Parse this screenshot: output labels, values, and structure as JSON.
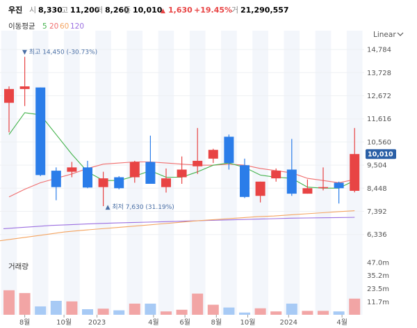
{
  "header": {
    "name": "우진",
    "open_label": "시",
    "open_value": "8,330",
    "high_label": "고",
    "high_value": "11,200",
    "low_label": "저",
    "low_value": "8,260",
    "close_label": "종",
    "close_value": "10,010",
    "change_arrow": "▲",
    "change_value": "1,630",
    "change_pct": "+19.45%",
    "volume_label": "거",
    "volume_value": "21,290,557"
  },
  "ma_legend": {
    "title": "이동평균",
    "items": [
      {
        "label": "5",
        "color": "#41b24a"
      },
      {
        "label": "20",
        "color": "#f06d6d"
      },
      {
        "label": "60",
        "color": "#f4a460"
      },
      {
        "label": "120",
        "color": "#9b6fe0"
      }
    ]
  },
  "scale_selector": {
    "label": "Linear",
    "icon": "chevron-down-icon"
  },
  "colors": {
    "up": "#e84444",
    "down": "#2b7de9",
    "up_vol": "#f2a5a5",
    "down_vol": "#a7caf5",
    "bg_band": "#f3f6fb"
  },
  "chart_data": {
    "type": "candlestick",
    "title": "우진",
    "y_axis": {
      "ticks": [
        "14,784",
        "13,728",
        "12,672",
        "11,616",
        "10,560",
        "9,504",
        "8,448",
        "7,392",
        "6,336"
      ],
      "tick_values": [
        14784,
        13728,
        12672,
        11616,
        10560,
        9504,
        8448,
        7392,
        6336
      ],
      "range": [
        5850,
        15200
      ]
    },
    "x_axis": {
      "ticks": [
        {
          "label": "8월",
          "index": 1
        },
        {
          "label": "10월",
          "index": 3.5
        },
        {
          "label": "2023",
          "index": 5.6
        },
        {
          "label": "4월",
          "index": 9.2
        },
        {
          "label": "6월",
          "index": 11.2
        },
        {
          "label": "8월",
          "index": 13.2
        },
        {
          "label": "10월",
          "index": 15.2
        },
        {
          "label": "2024",
          "index": 17.8
        },
        {
          "label": "4월",
          "index": 21.2
        }
      ]
    },
    "candles": [
      {
        "o": 12350,
        "h": 13100,
        "l": 11000,
        "c": 12980
      },
      {
        "o": 12980,
        "h": 14450,
        "l": 12200,
        "c": 13100
      },
      {
        "o": 13050,
        "h": 13050,
        "l": 9000,
        "c": 9050
      },
      {
        "o": 9250,
        "h": 9400,
        "l": 7900,
        "c": 8500
      },
      {
        "o": 9200,
        "h": 9650,
        "l": 8950,
        "c": 9400
      },
      {
        "o": 9400,
        "h": 9700,
        "l": 8450,
        "c": 8480
      },
      {
        "o": 8500,
        "h": 9200,
        "l": 7630,
        "c": 8900
      },
      {
        "o": 8950,
        "h": 9000,
        "l": 8400,
        "c": 8450
      },
      {
        "o": 8950,
        "h": 9700,
        "l": 8700,
        "c": 9650
      },
      {
        "o": 9650,
        "h": 10850,
        "l": 8700,
        "c": 8650
      },
      {
        "o": 8500,
        "h": 9350,
        "l": 8250,
        "c": 8900
      },
      {
        "o": 8950,
        "h": 9900,
        "l": 8650,
        "c": 9300
      },
      {
        "o": 9450,
        "h": 11200,
        "l": 9100,
        "c": 9700
      },
      {
        "o": 9800,
        "h": 10250,
        "l": 9600,
        "c": 10200
      },
      {
        "o": 10800,
        "h": 10900,
        "l": 9300,
        "c": 9600
      },
      {
        "o": 9500,
        "h": 9800,
        "l": 8000,
        "c": 8050
      },
      {
        "o": 8100,
        "h": 8750,
        "l": 7800,
        "c": 8750
      },
      {
        "o": 8900,
        "h": 9350,
        "l": 8750,
        "c": 9250
      },
      {
        "o": 9300,
        "h": 10700,
        "l": 8100,
        "c": 8200
      },
      {
        "o": 8200,
        "h": 8850,
        "l": 8200,
        "c": 8450
      },
      {
        "o": 8450,
        "h": 9400,
        "l": 8350,
        "c": 8500
      },
      {
        "o": 8700,
        "h": 8750,
        "l": 7750,
        "c": 8450
      },
      {
        "o": 8330,
        "h": 11200,
        "l": 8260,
        "c": 10010
      }
    ],
    "ma5": [
      10900,
      11900,
      11800,
      10900,
      10000,
      9200,
      8800,
      8800,
      9000,
      9250,
      8950,
      8950,
      9200,
      9500,
      9600,
      9400,
      9050,
      8950,
      8900,
      8500,
      8450,
      8450,
      8800
    ],
    "ma20": [
      8050,
      8400,
      8700,
      8900,
      9100,
      9350,
      9550,
      9600,
      9650,
      9650,
      9600,
      9550,
      9500,
      9500,
      9550,
      9500,
      9350,
      9250,
      9150,
      8900,
      8800,
      8700,
      8850
    ],
    "ma60": [
      6050,
      6150,
      6250,
      6350,
      6450,
      6520,
      6580,
      6640,
      6700,
      6760,
      6820,
      6880,
      6950,
      7000,
      7050,
      7100,
      7150,
      7180,
      7230,
      7280,
      7330,
      7380,
      7420
    ],
    "ma120": [
      6600,
      6650,
      6700,
      6750,
      6780,
      6810,
      6840,
      6860,
      6880,
      6900,
      6920,
      6940,
      6960,
      6980,
      7000,
      7020,
      7040,
      7060,
      7080,
      7090,
      7100,
      7110,
      7120
    ],
    "high_marker": {
      "label": "최고 14,450 (-30.73%)",
      "index": 1,
      "value": 14450
    },
    "low_marker": {
      "label": "최저 7,630 (31.19%)",
      "index": 6,
      "value": 7630
    },
    "last_price_label": "10,010",
    "volume": {
      "title": "거래량",
      "ticks": [
        "47.0m",
        "35.2m",
        "23.5m",
        "11.7m"
      ],
      "tick_values": [
        47.0,
        35.2,
        23.5,
        11.7
      ],
      "max": 50,
      "values": [
        22.0,
        19.5,
        7.5,
        12.5,
        12.0,
        5.0,
        5.5,
        4.0,
        10.0,
        10.0,
        3.0,
        4.5,
        19.0,
        9.0,
        6.5,
        2.0,
        5.8,
        3.0,
        10.0,
        3.5,
        3.5,
        3.0,
        14.5
      ]
    }
  }
}
